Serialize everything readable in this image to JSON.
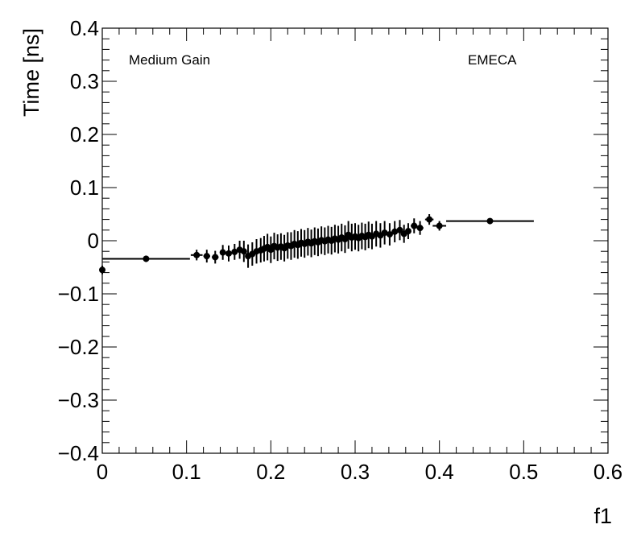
{
  "chart_data": {
    "type": "scatter",
    "title": "",
    "xlabel": "f1",
    "ylabel": "Time [ns]",
    "xlim": [
      0,
      0.6
    ],
    "ylim": [
      -0.4,
      0.4
    ],
    "x_ticks": [
      "0",
      "0.1",
      "0.2",
      "0.3",
      "0.4",
      "0.5",
      "0.6"
    ],
    "y_ticks": [
      "−0.4",
      "−0.3",
      "−0.2",
      "−0.1",
      "0",
      "0.1",
      "0.2",
      "0.3",
      "0.4"
    ],
    "annotations": {
      "left": "Medium Gain",
      "right": "EMECA"
    },
    "grid": false,
    "series": [
      {
        "marker_color": "#000000",
        "points": [
          {
            "x": 0.0,
            "y": -0.055,
            "xerr": 0.002,
            "yerr": 0.008
          },
          {
            "x": 0.052,
            "y": -0.034,
            "xerr": 0.052,
            "yerr": 0.006
          },
          {
            "x": 0.112,
            "y": -0.027,
            "xerr": 0.007,
            "yerr": 0.01
          },
          {
            "x": 0.124,
            "y": -0.029,
            "xerr": 0.004,
            "yerr": 0.012
          },
          {
            "x": 0.134,
            "y": -0.031,
            "xerr": 0.004,
            "yerr": 0.012
          },
          {
            "x": 0.143,
            "y": -0.022,
            "xerr": 0.003,
            "yerr": 0.014
          },
          {
            "x": 0.15,
            "y": -0.024,
            "xerr": 0.003,
            "yerr": 0.015
          },
          {
            "x": 0.157,
            "y": -0.021,
            "xerr": 0.003,
            "yerr": 0.015
          },
          {
            "x": 0.163,
            "y": -0.017,
            "xerr": 0.003,
            "yerr": 0.017
          },
          {
            "x": 0.168,
            "y": -0.02,
            "xerr": 0.002,
            "yerr": 0.02
          },
          {
            "x": 0.173,
            "y": -0.029,
            "xerr": 0.002,
            "yerr": 0.022
          },
          {
            "x": 0.178,
            "y": -0.025,
            "xerr": 0.002,
            "yerr": 0.022
          },
          {
            "x": 0.183,
            "y": -0.02,
            "xerr": 0.002,
            "yerr": 0.023
          },
          {
            "x": 0.188,
            "y": -0.018,
            "xerr": 0.002,
            "yerr": 0.023
          },
          {
            "x": 0.192,
            "y": -0.015,
            "xerr": 0.002,
            "yerr": 0.024
          },
          {
            "x": 0.196,
            "y": -0.012,
            "xerr": 0.002,
            "yerr": 0.025
          },
          {
            "x": 0.2,
            "y": -0.017,
            "xerr": 0.002,
            "yerr": 0.025
          },
          {
            "x": 0.204,
            "y": -0.01,
            "xerr": 0.002,
            "yerr": 0.025
          },
          {
            "x": 0.208,
            "y": -0.013,
            "xerr": 0.002,
            "yerr": 0.025
          },
          {
            "x": 0.212,
            "y": -0.011,
            "xerr": 0.002,
            "yerr": 0.025
          },
          {
            "x": 0.216,
            "y": -0.014,
            "xerr": 0.002,
            "yerr": 0.025
          },
          {
            "x": 0.22,
            "y": -0.009,
            "xerr": 0.002,
            "yerr": 0.025
          },
          {
            "x": 0.224,
            "y": -0.01,
            "xerr": 0.002,
            "yerr": 0.026
          },
          {
            "x": 0.228,
            "y": -0.006,
            "xerr": 0.002,
            "yerr": 0.026
          },
          {
            "x": 0.232,
            "y": -0.008,
            "xerr": 0.002,
            "yerr": 0.026
          },
          {
            "x": 0.236,
            "y": -0.004,
            "xerr": 0.002,
            "yerr": 0.026
          },
          {
            "x": 0.24,
            "y": -0.006,
            "xerr": 0.002,
            "yerr": 0.026
          },
          {
            "x": 0.244,
            "y": -0.002,
            "xerr": 0.002,
            "yerr": 0.026
          },
          {
            "x": 0.248,
            "y": -0.005,
            "xerr": 0.002,
            "yerr": 0.026
          },
          {
            "x": 0.252,
            "y": -0.001,
            "xerr": 0.002,
            "yerr": 0.026
          },
          {
            "x": 0.256,
            "y": -0.003,
            "xerr": 0.002,
            "yerr": 0.026
          },
          {
            "x": 0.26,
            "y": 0.001,
            "xerr": 0.002,
            "yerr": 0.026
          },
          {
            "x": 0.264,
            "y": -0.001,
            "xerr": 0.002,
            "yerr": 0.026
          },
          {
            "x": 0.268,
            "y": 0.002,
            "xerr": 0.002,
            "yerr": 0.026
          },
          {
            "x": 0.272,
            "y": 0.0,
            "xerr": 0.002,
            "yerr": 0.026
          },
          {
            "x": 0.276,
            "y": 0.004,
            "xerr": 0.002,
            "yerr": 0.026
          },
          {
            "x": 0.28,
            "y": 0.002,
            "xerr": 0.002,
            "yerr": 0.026
          },
          {
            "x": 0.284,
            "y": 0.006,
            "xerr": 0.002,
            "yerr": 0.026
          },
          {
            "x": 0.288,
            "y": 0.003,
            "xerr": 0.002,
            "yerr": 0.026
          },
          {
            "x": 0.292,
            "y": 0.011,
            "xerr": 0.002,
            "yerr": 0.026
          },
          {
            "x": 0.296,
            "y": 0.006,
            "xerr": 0.002,
            "yerr": 0.026
          },
          {
            "x": 0.3,
            "y": 0.008,
            "xerr": 0.002,
            "yerr": 0.025
          },
          {
            "x": 0.304,
            "y": 0.005,
            "xerr": 0.002,
            "yerr": 0.025
          },
          {
            "x": 0.308,
            "y": 0.009,
            "xerr": 0.002,
            "yerr": 0.025
          },
          {
            "x": 0.312,
            "y": 0.007,
            "xerr": 0.002,
            "yerr": 0.025
          },
          {
            "x": 0.316,
            "y": 0.011,
            "xerr": 0.002,
            "yerr": 0.025
          },
          {
            "x": 0.32,
            "y": 0.008,
            "xerr": 0.002,
            "yerr": 0.024
          },
          {
            "x": 0.325,
            "y": 0.013,
            "xerr": 0.003,
            "yerr": 0.024
          },
          {
            "x": 0.33,
            "y": 0.01,
            "xerr": 0.003,
            "yerr": 0.023
          },
          {
            "x": 0.335,
            "y": 0.015,
            "xerr": 0.003,
            "yerr": 0.022
          },
          {
            "x": 0.341,
            "y": 0.012,
            "xerr": 0.003,
            "yerr": 0.021
          },
          {
            "x": 0.347,
            "y": 0.017,
            "xerr": 0.003,
            "yerr": 0.02
          },
          {
            "x": 0.353,
            "y": 0.02,
            "xerr": 0.003,
            "yerr": 0.019
          },
          {
            "x": 0.358,
            "y": 0.013,
            "xerr": 0.003,
            "yerr": 0.017
          },
          {
            "x": 0.363,
            "y": 0.018,
            "xerr": 0.003,
            "yerr": 0.015
          },
          {
            "x": 0.37,
            "y": 0.028,
            "xerr": 0.004,
            "yerr": 0.014
          },
          {
            "x": 0.377,
            "y": 0.024,
            "xerr": 0.004,
            "yerr": 0.013
          },
          {
            "x": 0.388,
            "y": 0.04,
            "xerr": 0.005,
            "yerr": 0.01
          },
          {
            "x": 0.4,
            "y": 0.028,
            "xerr": 0.008,
            "yerr": 0.009
          },
          {
            "x": 0.46,
            "y": 0.037,
            "xerr": 0.052,
            "yerr": 0.005
          }
        ]
      }
    ]
  }
}
